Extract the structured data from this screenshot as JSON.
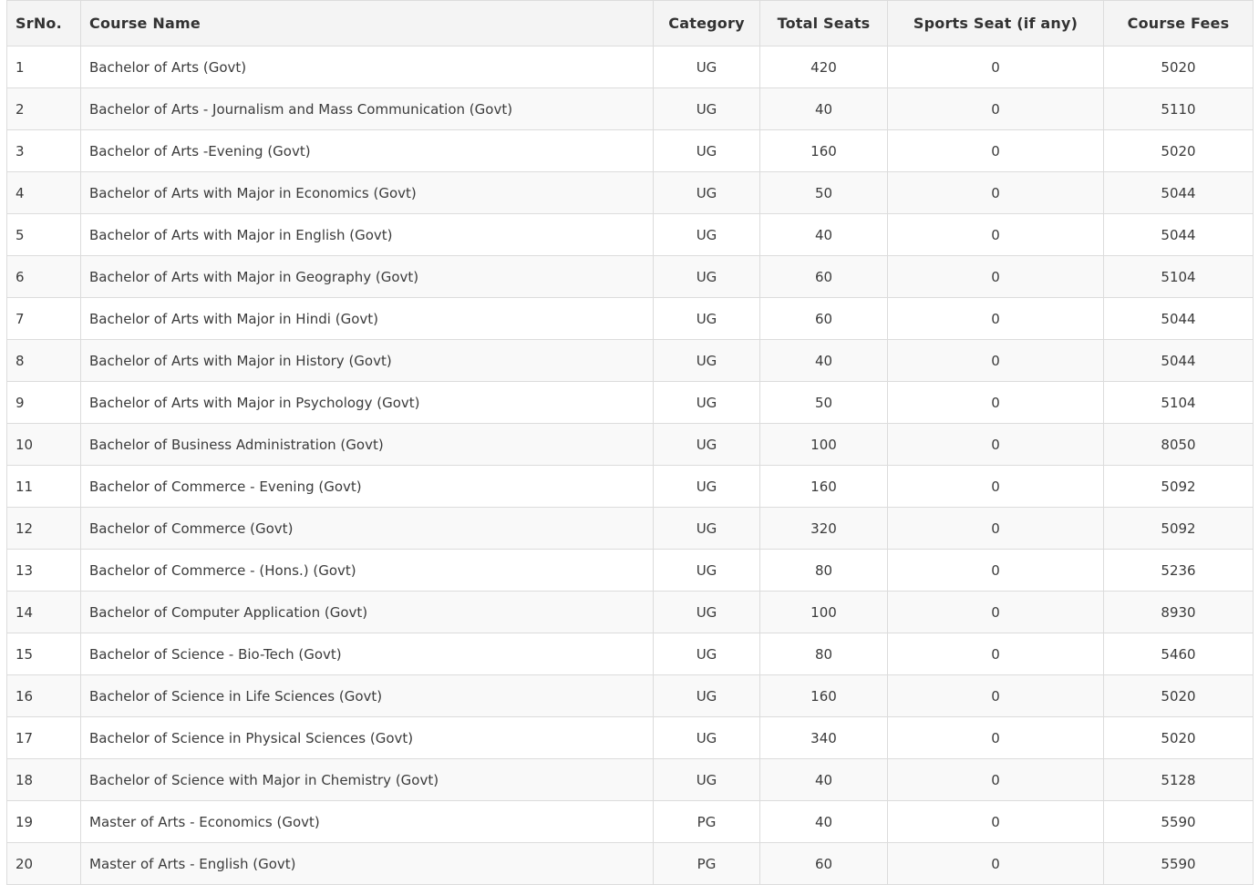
{
  "table": {
    "columns": [
      {
        "key": "sr_no",
        "label": "SrNo."
      },
      {
        "key": "course_name",
        "label": "Course Name"
      },
      {
        "key": "category",
        "label": "Category"
      },
      {
        "key": "total_seats",
        "label": "Total Seats"
      },
      {
        "key": "sports_seat",
        "label": "Sports Seat (if any)"
      },
      {
        "key": "course_fees",
        "label": "Course Fees"
      }
    ],
    "rows": [
      {
        "sr_no": "1",
        "course_name": "Bachelor of Arts (Govt)",
        "category": "UG",
        "total_seats": "420",
        "sports_seat": "0",
        "course_fees": "5020"
      },
      {
        "sr_no": "2",
        "course_name": "Bachelor of Arts - Journalism and Mass Communication (Govt)",
        "category": "UG",
        "total_seats": "40",
        "sports_seat": "0",
        "course_fees": "5110"
      },
      {
        "sr_no": "3",
        "course_name": "Bachelor of Arts -Evening (Govt)",
        "category": "UG",
        "total_seats": "160",
        "sports_seat": "0",
        "course_fees": "5020"
      },
      {
        "sr_no": "4",
        "course_name": "Bachelor of Arts with Major in Economics (Govt)",
        "category": "UG",
        "total_seats": "50",
        "sports_seat": "0",
        "course_fees": "5044"
      },
      {
        "sr_no": "5",
        "course_name": "Bachelor of Arts with Major in English (Govt)",
        "category": "UG",
        "total_seats": "40",
        "sports_seat": "0",
        "course_fees": "5044"
      },
      {
        "sr_no": "6",
        "course_name": "Bachelor of Arts with Major in Geography (Govt)",
        "category": "UG",
        "total_seats": "60",
        "sports_seat": "0",
        "course_fees": "5104"
      },
      {
        "sr_no": "7",
        "course_name": "Bachelor of Arts with Major in Hindi (Govt)",
        "category": "UG",
        "total_seats": "60",
        "sports_seat": "0",
        "course_fees": "5044"
      },
      {
        "sr_no": "8",
        "course_name": "Bachelor of Arts with Major in History (Govt)",
        "category": "UG",
        "total_seats": "40",
        "sports_seat": "0",
        "course_fees": "5044"
      },
      {
        "sr_no": "9",
        "course_name": "Bachelor of Arts with Major in Psychology (Govt)",
        "category": "UG",
        "total_seats": "50",
        "sports_seat": "0",
        "course_fees": "5104"
      },
      {
        "sr_no": "10",
        "course_name": "Bachelor of Business Administration (Govt)",
        "category": "UG",
        "total_seats": "100",
        "sports_seat": "0",
        "course_fees": "8050"
      },
      {
        "sr_no": "11",
        "course_name": "Bachelor of Commerce - Evening (Govt)",
        "category": "UG",
        "total_seats": "160",
        "sports_seat": "0",
        "course_fees": "5092"
      },
      {
        "sr_no": "12",
        "course_name": "Bachelor of Commerce (Govt)",
        "category": "UG",
        "total_seats": "320",
        "sports_seat": "0",
        "course_fees": "5092"
      },
      {
        "sr_no": "13",
        "course_name": "Bachelor of Commerce - (Hons.) (Govt)",
        "category": "UG",
        "total_seats": "80",
        "sports_seat": "0",
        "course_fees": "5236"
      },
      {
        "sr_no": "14",
        "course_name": "Bachelor of Computer Application (Govt)",
        "category": "UG",
        "total_seats": "100",
        "sports_seat": "0",
        "course_fees": "8930"
      },
      {
        "sr_no": "15",
        "course_name": "Bachelor of Science - Bio-Tech (Govt)",
        "category": "UG",
        "total_seats": "80",
        "sports_seat": "0",
        "course_fees": "5460"
      },
      {
        "sr_no": "16",
        "course_name": "Bachelor of Science in Life Sciences (Govt)",
        "category": "UG",
        "total_seats": "160",
        "sports_seat": "0",
        "course_fees": "5020"
      },
      {
        "sr_no": "17",
        "course_name": "Bachelor of Science in Physical Sciences (Govt)",
        "category": "UG",
        "total_seats": "340",
        "sports_seat": "0",
        "course_fees": "5020"
      },
      {
        "sr_no": "18",
        "course_name": "Bachelor of Science with Major in Chemistry (Govt)",
        "category": "UG",
        "total_seats": "40",
        "sports_seat": "0",
        "course_fees": "5128"
      },
      {
        "sr_no": "19",
        "course_name": "Master of Arts - Economics (Govt)",
        "category": "PG",
        "total_seats": "40",
        "sports_seat": "0",
        "course_fees": "5590"
      },
      {
        "sr_no": "20",
        "course_name": "Master of Arts - English (Govt)",
        "category": "PG",
        "total_seats": "60",
        "sports_seat": "0",
        "course_fees": "5590"
      }
    ]
  },
  "colors": {
    "header_background": "#f4f4f4",
    "stripe_background": "#f9f9f9",
    "border": "#dcdcdc",
    "text": "#3b3b3b"
  }
}
